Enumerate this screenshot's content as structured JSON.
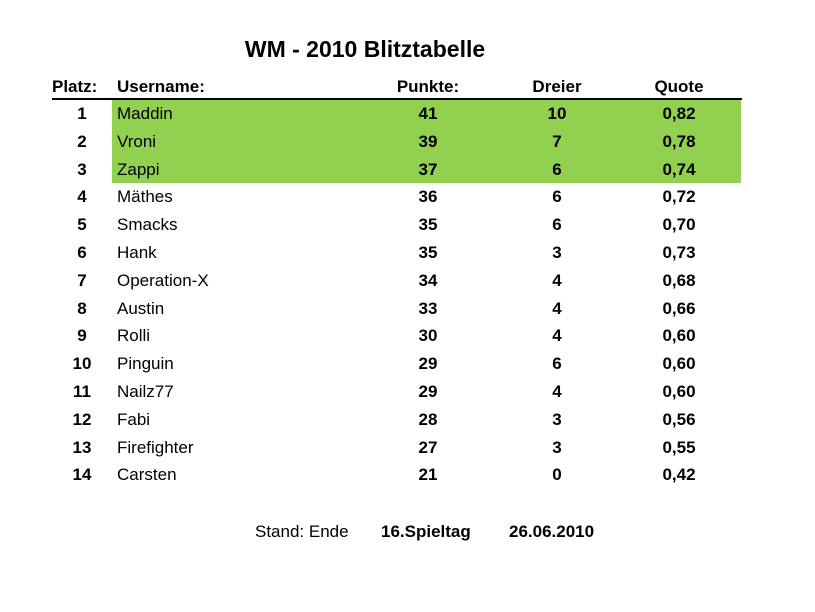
{
  "title": "WM - 2010 Blitztabelle",
  "colors": {
    "highlight": "#92d050",
    "text": "#000000"
  },
  "header": {
    "platz": "Platz:",
    "username": "Username:",
    "punkte": "Punkte:",
    "dreier": "Dreier",
    "quote": "Quote"
  },
  "rows": [
    {
      "platz": "1",
      "username": "Maddin",
      "punkte": "41",
      "dreier": "10",
      "quote": "0,82",
      "highlight": true
    },
    {
      "platz": "2",
      "username": "Vroni",
      "punkte": "39",
      "dreier": "7",
      "quote": "0,78",
      "highlight": true
    },
    {
      "platz": "3",
      "username": "Zappi",
      "punkte": "37",
      "dreier": "6",
      "quote": "0,74",
      "highlight": true
    },
    {
      "platz": "4",
      "username": "Mäthes",
      "punkte": "36",
      "dreier": "6",
      "quote": "0,72",
      "highlight": false
    },
    {
      "platz": "5",
      "username": "Smacks",
      "punkte": "35",
      "dreier": "6",
      "quote": "0,70",
      "highlight": false
    },
    {
      "platz": "6",
      "username": "Hank",
      "punkte": "35",
      "dreier": "3",
      "quote": "0,73",
      "highlight": false
    },
    {
      "platz": "7",
      "username": "Operation-X",
      "punkte": "34",
      "dreier": "4",
      "quote": "0,68",
      "highlight": false
    },
    {
      "platz": "8",
      "username": "Austin",
      "punkte": "33",
      "dreier": "4",
      "quote": "0,66",
      "highlight": false
    },
    {
      "platz": "9",
      "username": "Rolli",
      "punkte": "30",
      "dreier": "4",
      "quote": "0,60",
      "highlight": false
    },
    {
      "platz": "10",
      "username": "Pinguin",
      "punkte": "29",
      "dreier": "6",
      "quote": "0,60",
      "highlight": false
    },
    {
      "platz": "11",
      "username": "Nailz77",
      "punkte": "29",
      "dreier": "4",
      "quote": "0,60",
      "highlight": false
    },
    {
      "platz": "12",
      "username": "Fabi",
      "punkte": "28",
      "dreier": "3",
      "quote": "0,56",
      "highlight": false
    },
    {
      "platz": "13",
      "username": "Firefighter",
      "punkte": "27",
      "dreier": "3",
      "quote": "0,55",
      "highlight": false
    },
    {
      "platz": "14",
      "username": "Carsten",
      "punkte": "21",
      "dreier": "0",
      "quote": "0,42",
      "highlight": false
    }
  ],
  "footer": {
    "stand": "Stand: Ende",
    "spieltag": "16.Spieltag",
    "datum": "26.06.2010"
  }
}
